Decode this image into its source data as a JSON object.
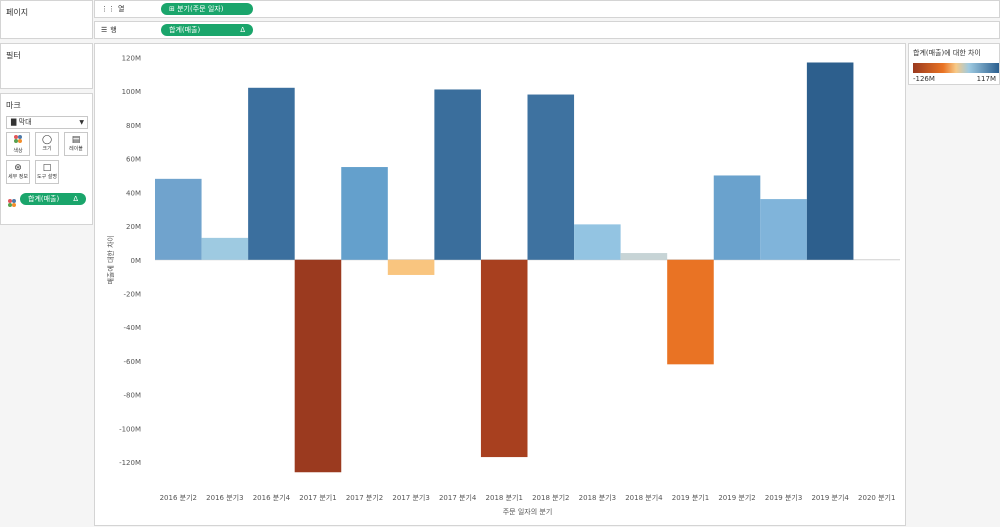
{
  "left_panel": {
    "pages_title": "페이지",
    "filters_title": "필터",
    "marks_title": "마크",
    "mark_type": "막대",
    "mark_buttons": [
      {
        "label": "색상",
        "icon": "color-dots-icon"
      },
      {
        "label": "크기",
        "icon": "size-icon"
      },
      {
        "label": "레이블",
        "icon": "label-icon"
      },
      {
        "label": "세부 정보",
        "icon": "detail-icon"
      },
      {
        "label": "도구 설명",
        "icon": "tooltip-icon"
      }
    ],
    "color_pill": "합계(매출)",
    "color_pill_delta": "Δ"
  },
  "shelves": {
    "columns_label": "열",
    "columns_pill": "분기(주문 일자)",
    "rows_label": "행",
    "rows_pill": "합계(매출)",
    "rows_pill_delta": "Δ"
  },
  "legend": {
    "title": "합계(매출)에 대한 차이",
    "min_label": "-126M",
    "max_label": "117M",
    "colors": {
      "negative": "#9a3a1f",
      "mid": "#f7c987",
      "positive": "#2b5f8f"
    }
  },
  "chart_data": {
    "type": "bar",
    "xlabel": "주문 일자의 분기",
    "ylabel": "매출에 대한 차이",
    "ylim": [
      -130,
      125
    ],
    "y_ticks": [
      120,
      100,
      80,
      60,
      40,
      20,
      0,
      -20,
      -40,
      -60,
      -80,
      -100,
      -120
    ],
    "y_tick_labels": [
      "120M",
      "100M",
      "80M",
      "60M",
      "40M",
      "20M",
      "0M",
      "-20M",
      "-40M",
      "-60M",
      "-80M",
      "-100M",
      "-120M"
    ],
    "categories": [
      "2016 분기2",
      "2016 분기3",
      "2016 분기4",
      "2017 분기1",
      "2017 분기2",
      "2017 분기3",
      "2017 분기4",
      "2018 분기1",
      "2018 분기2",
      "2018 분기3",
      "2018 분기4",
      "2019 분기1",
      "2019 분기2",
      "2019 분기3",
      "2019 분기4",
      "2020 분기1"
    ],
    "values": [
      48,
      13,
      102,
      -126,
      55,
      -9,
      101,
      -117,
      98,
      21,
      4,
      -62,
      50,
      36,
      117,
      null
    ],
    "colors": [
      "#70a3cd",
      "#9ecae1",
      "#3b6f9e",
      "#9b3a1f",
      "#64a0cc",
      "#f9c57f",
      "#3a6e9c",
      "#a8401f",
      "#3e72a0",
      "#93c4e2",
      "#c7d4d6",
      "#e97324",
      "#6aa2cd",
      "#80b4da",
      "#2d5f8d",
      null
    ],
    "grid": false
  }
}
